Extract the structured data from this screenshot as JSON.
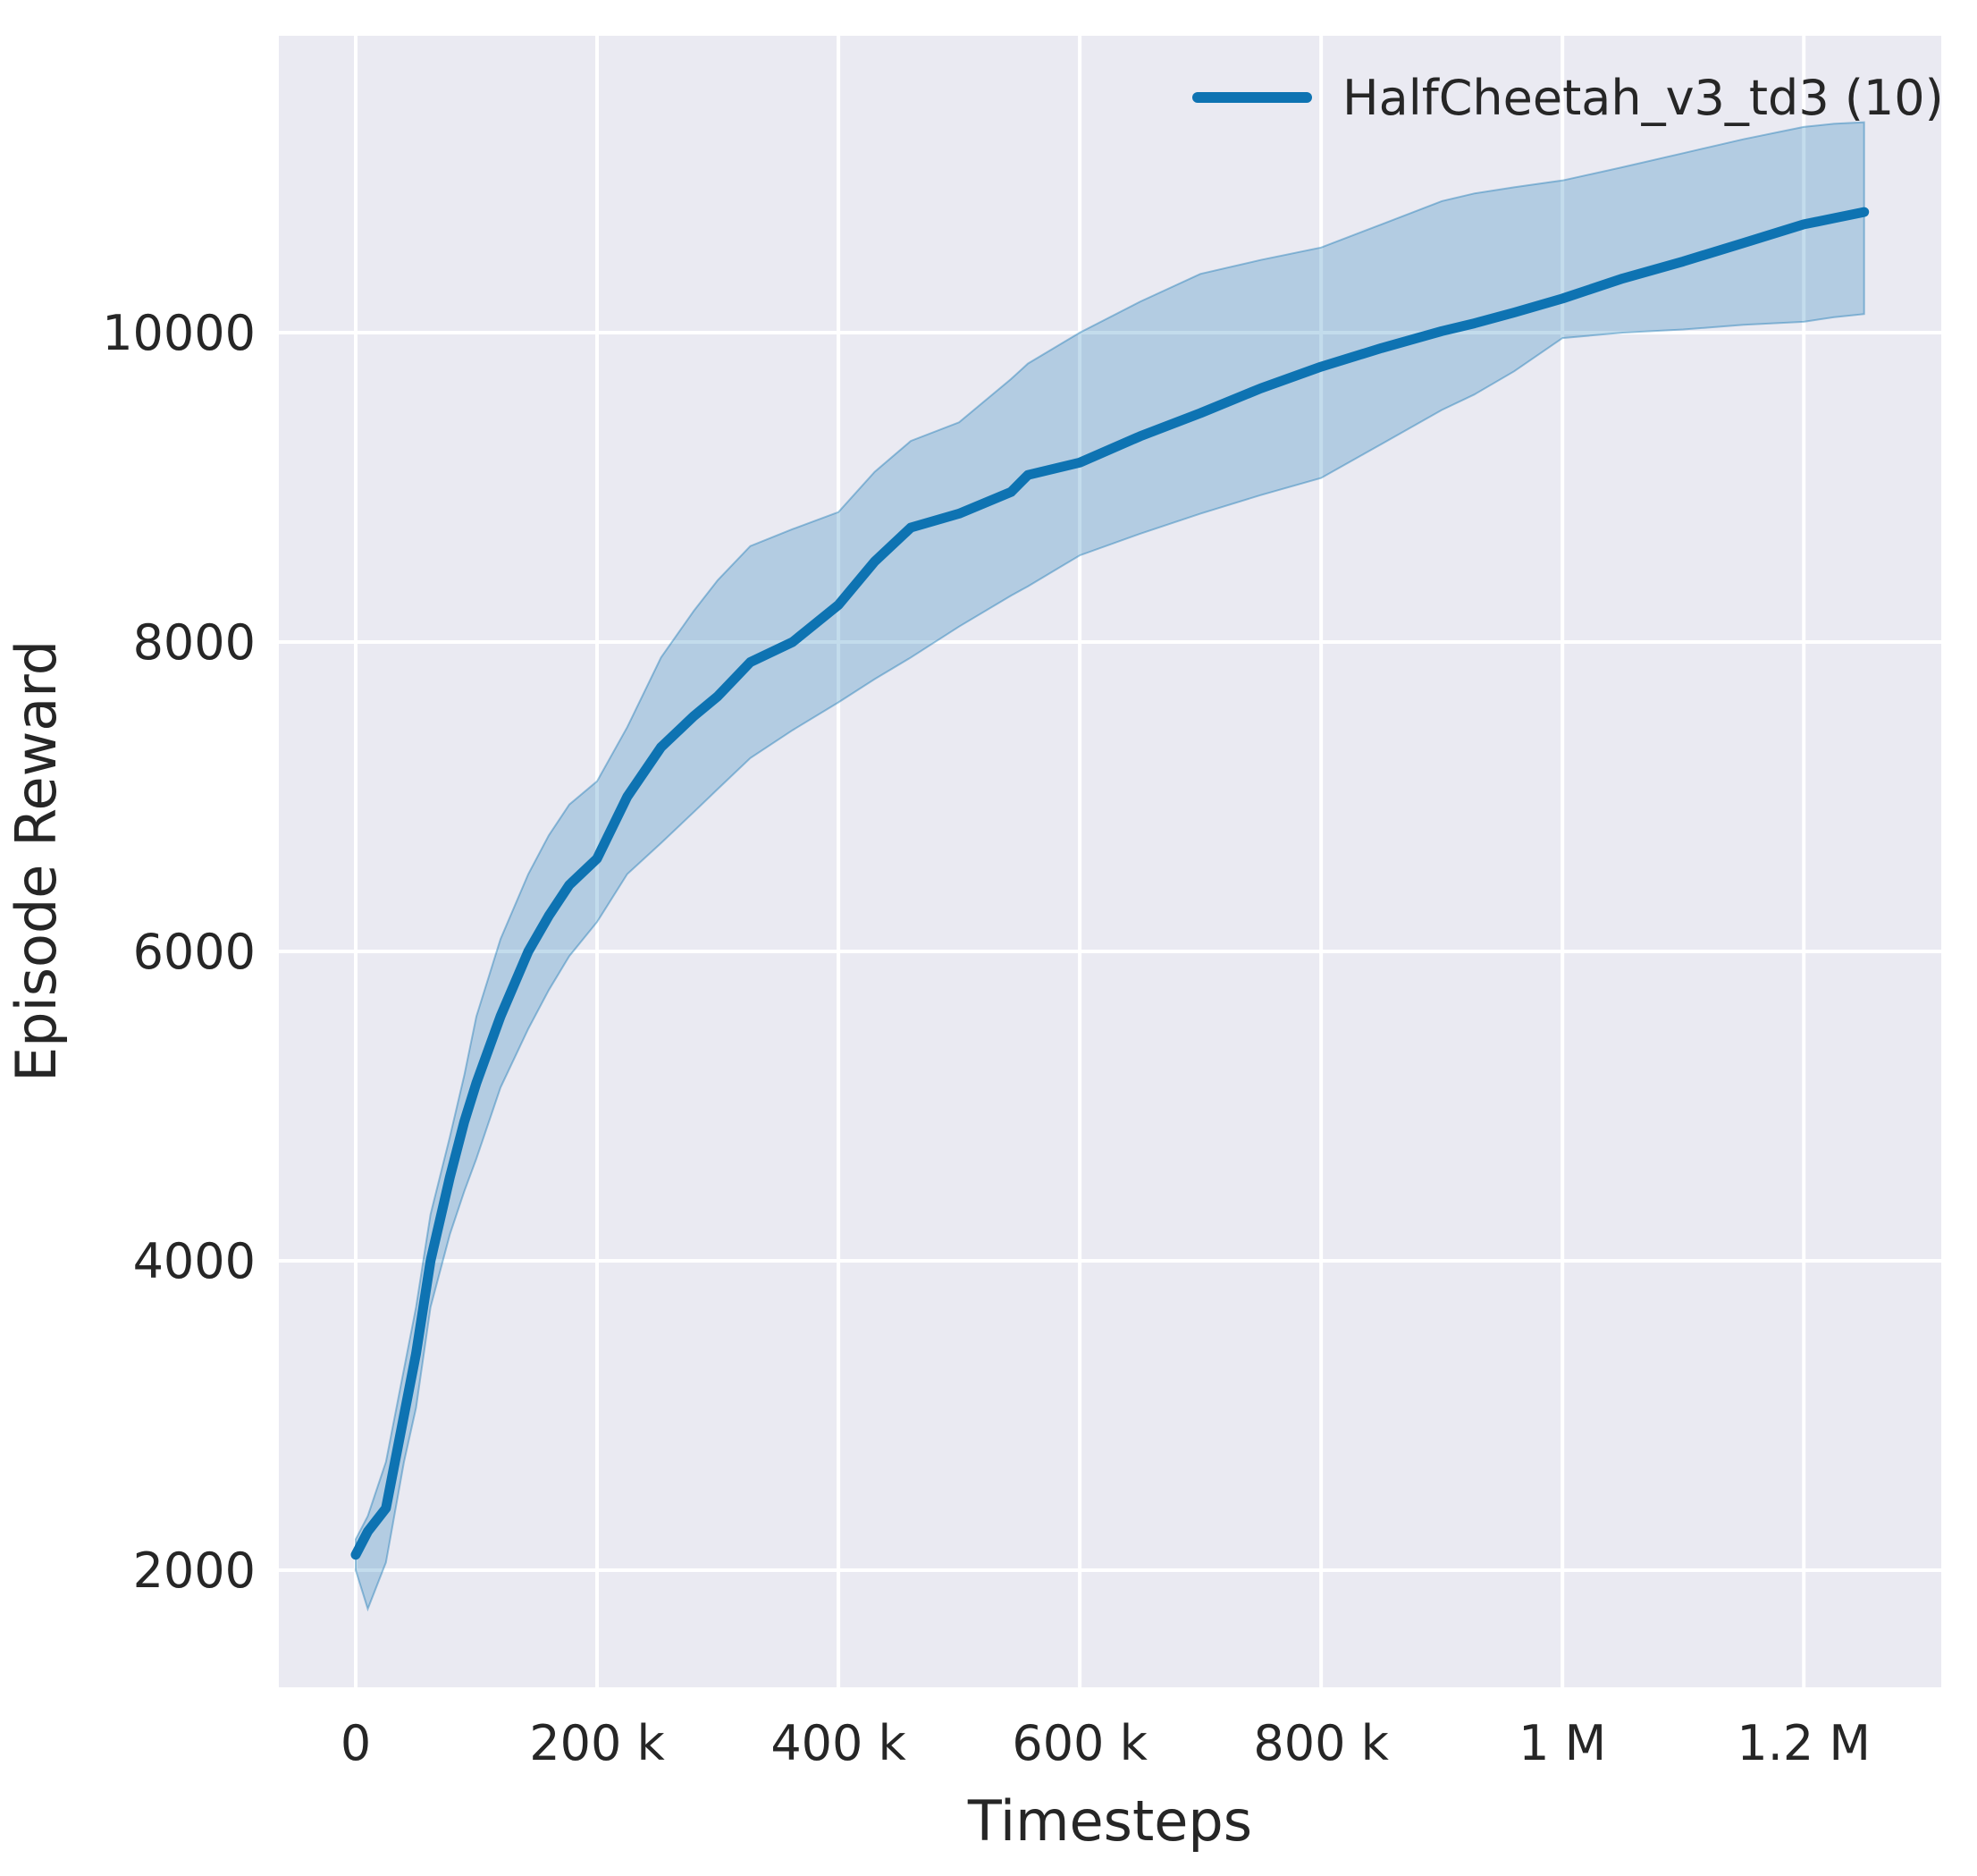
{
  "colors": {
    "figure_background": "#ffffff",
    "plot_background": "#eaeaf2",
    "gridline": "#ffffff",
    "text": "#262626",
    "line": "#0e73b2",
    "band_opacity": 0.25
  },
  "chart_data": {
    "type": "line",
    "title": "",
    "xlabel": "Timesteps",
    "ylabel": "Episode Reward",
    "grid": true,
    "legend_position": "upper right",
    "xlim": [
      -63700,
      1313900
    ],
    "ylim": [
      1243,
      11919
    ],
    "x_ticks": [
      {
        "value": 0,
        "label": "0"
      },
      {
        "value": 200000,
        "label": "200 k"
      },
      {
        "value": 400000,
        "label": "400 k"
      },
      {
        "value": 600000,
        "label": "600 k"
      },
      {
        "value": 800000,
        "label": "800 k"
      },
      {
        "value": 1000000,
        "label": "1 M"
      },
      {
        "value": 1200000,
        "label": "1.2 M"
      }
    ],
    "y_ticks": [
      {
        "value": 2000,
        "label": "2000"
      },
      {
        "value": 4000,
        "label": "4000"
      },
      {
        "value": 6000,
        "label": "6000"
      },
      {
        "value": 8000,
        "label": "8000"
      },
      {
        "value": 10000,
        "label": "10000"
      }
    ],
    "series": [
      {
        "name": "HalfCheetah_v3_td3 (10)",
        "color": "#0e73b2",
        "x": [
          0,
          10000,
          25000,
          40000,
          50000,
          62000,
          78000,
          90000,
          100000,
          120000,
          143000,
          160000,
          177000,
          200000,
          225000,
          253000,
          280000,
          300000,
          327000,
          362000,
          400000,
          430000,
          460000,
          500000,
          543000,
          557000,
          600000,
          650000,
          700000,
          750000,
          800000,
          850000,
          900000,
          927000,
          960000,
          1000000,
          1050000,
          1100000,
          1150000,
          1200000,
          1225000,
          1250000
        ],
        "mean": [
          2100,
          2250,
          2400,
          3000,
          3400,
          4000,
          4540,
          4900,
          5150,
          5580,
          6000,
          6230,
          6430,
          6600,
          7000,
          7320,
          7520,
          7650,
          7870,
          8000,
          8240,
          8520,
          8740,
          8830,
          8970,
          9080,
          9160,
          9330,
          9480,
          9640,
          9780,
          9900,
          10010,
          10060,
          10130,
          10220,
          10350,
          10460,
          10580,
          10700,
          10740,
          10780
        ],
        "band_lower": [
          2000,
          1750,
          2050,
          2700,
          3050,
          3700,
          4170,
          4450,
          4660,
          5120,
          5500,
          5750,
          5970,
          6190,
          6500,
          6700,
          6900,
          7050,
          7250,
          7430,
          7610,
          7760,
          7900,
          8100,
          8300,
          8360,
          8560,
          8700,
          8830,
          8950,
          9060,
          9280,
          9500,
          9600,
          9750,
          9965,
          10000,
          10020,
          10050,
          10070,
          10100,
          10120
        ],
        "band_upper": [
          2200,
          2350,
          2700,
          3300,
          3700,
          4300,
          4800,
          5200,
          5580,
          6080,
          6500,
          6750,
          6950,
          7100,
          7450,
          7900,
          8200,
          8400,
          8620,
          8730,
          8840,
          9100,
          9300,
          9420,
          9700,
          9800,
          10000,
          10200,
          10380,
          10470,
          10550,
          10700,
          10850,
          10900,
          10940,
          10984,
          11070,
          11160,
          11250,
          11330,
          11350,
          11360
        ]
      }
    ]
  }
}
